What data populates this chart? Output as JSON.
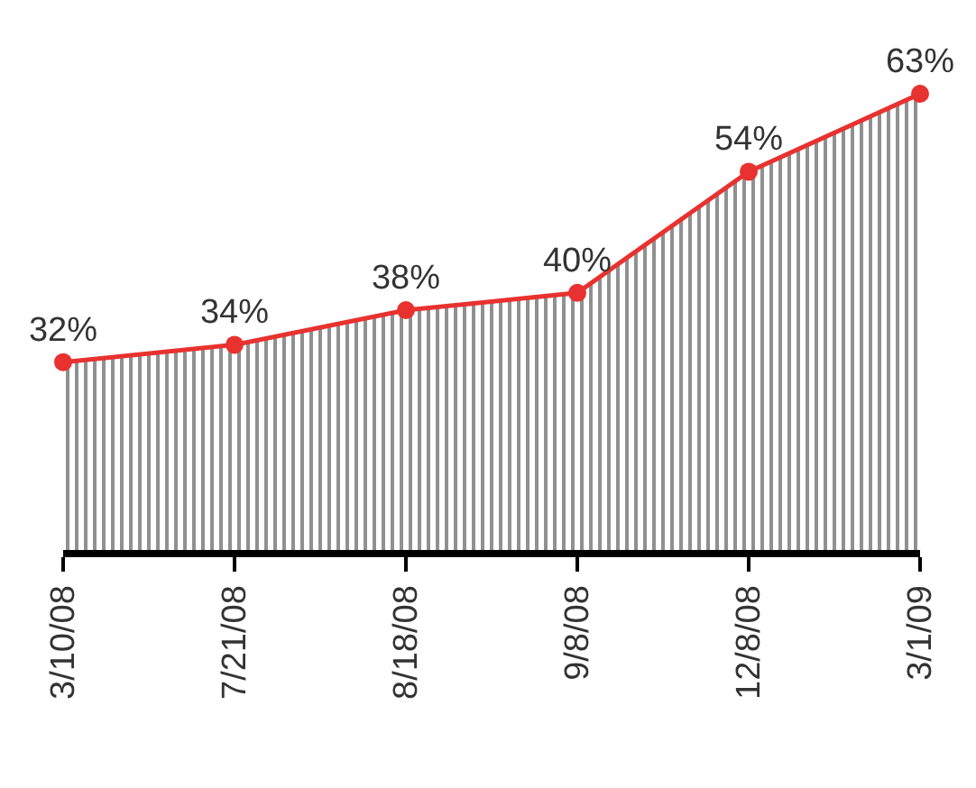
{
  "chart_data": {
    "type": "area",
    "categories": [
      "3/10/08",
      "7/21/08",
      "8/18/08",
      "9/8/08",
      "12/8/08",
      "3/1/09"
    ],
    "series": [
      {
        "color": "#e8322f",
        "values": [
          32,
          34,
          38,
          40,
          54,
          63
        ],
        "value_labels": [
          "32%",
          "34%",
          "38%",
          "40%",
          "54%",
          "63%"
        ]
      }
    ],
    "marker": "circle",
    "line_style": "solid",
    "legend": false
  }
}
